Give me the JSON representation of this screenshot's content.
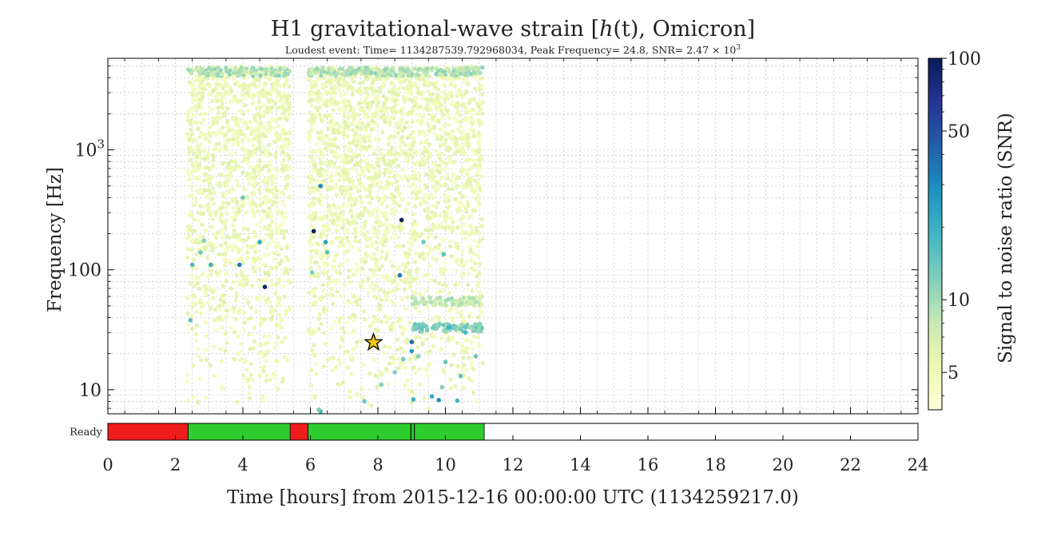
{
  "chart_data": {
    "type": "scatter",
    "title": "H1 gravitational-wave strain [h(t), Omicron]",
    "title_parts": {
      "prefix": "H1 gravitational-wave strain [",
      "var": "h",
      "arg": "(t)",
      "suffix": ", Omicron]"
    },
    "subtitle": "Loudest event: Time= 1134287539.792968034, Peak Frequency= 24.8, SNR= 2.47 × 10",
    "subtitle_exp": "3",
    "xlabel": "Time [hours] from 2015-12-16 00:00:00 UTC (1134259217.0)",
    "ylabel": "Frequency [Hz]",
    "xlim": [
      0,
      24
    ],
    "ylim": [
      6.3,
      5800
    ],
    "yscale": "log",
    "grid": true,
    "x_ticks": [
      0,
      2,
      4,
      6,
      8,
      10,
      12,
      14,
      16,
      18,
      20,
      22,
      24
    ],
    "y_ticks": [
      {
        "value": 10,
        "label": "10"
      },
      {
        "value": 100,
        "label": "100"
      },
      {
        "value": 1000,
        "label": "10",
        "exp": "3"
      }
    ],
    "colorbar": {
      "label": "Signal to noise ratio (SNR)",
      "scale": "log",
      "range": [
        3.5,
        100
      ],
      "ticks": [
        5,
        10,
        50,
        100
      ],
      "colormap": [
        "#ffffd9",
        "#edf8b1",
        "#c7e9b4",
        "#7fcdbb",
        "#41b6c4",
        "#1d91c0",
        "#225ea8",
        "#253494",
        "#081d58"
      ]
    },
    "loudest_event": {
      "x": 7.87,
      "y": 24.8,
      "snr": 2470,
      "marker": "star",
      "color": "#f5c518"
    },
    "trigger_clusters": [
      {
        "x_range": [
          2.35,
          5.4
        ],
        "y_range": [
          6.5,
          5000
        ],
        "snr": 4.5,
        "density": "high"
      },
      {
        "x_range": [
          5.95,
          11.1
        ],
        "y_range": [
          6.5,
          5000
        ],
        "snr": 4.5,
        "density": "high"
      }
    ],
    "bands": [
      {
        "x_range": [
          2.35,
          5.4
        ],
        "y": 4500,
        "snr": 9
      },
      {
        "x_range": [
          5.95,
          11.1
        ],
        "y": 4500,
        "snr": 9
      },
      {
        "x_range": [
          9.0,
          11.1
        ],
        "y": 55,
        "snr": 8
      },
      {
        "x_range": [
          9.0,
          11.1
        ],
        "y": 33,
        "snr": 12
      }
    ],
    "high_snr_points": [
      {
        "x": 2.5,
        "y": 110,
        "snr": 18
      },
      {
        "x": 2.75,
        "y": 140,
        "snr": 14
      },
      {
        "x": 2.85,
        "y": 175,
        "snr": 12
      },
      {
        "x": 3.05,
        "y": 110,
        "snr": 20
      },
      {
        "x": 3.9,
        "y": 110,
        "snr": 35
      },
      {
        "x": 4.0,
        "y": 400,
        "snr": 14
      },
      {
        "x": 4.5,
        "y": 170,
        "snr": 22
      },
      {
        "x": 4.65,
        "y": 72,
        "snr": 90
      },
      {
        "x": 2.45,
        "y": 38,
        "snr": 16
      },
      {
        "x": 6.1,
        "y": 210,
        "snr": 95
      },
      {
        "x": 6.3,
        "y": 500,
        "snr": 30
      },
      {
        "x": 6.45,
        "y": 170,
        "snr": 25
      },
      {
        "x": 6.5,
        "y": 140,
        "snr": 16
      },
      {
        "x": 6.05,
        "y": 95,
        "snr": 12
      },
      {
        "x": 8.7,
        "y": 260,
        "snr": 95
      },
      {
        "x": 8.65,
        "y": 90,
        "snr": 35
      },
      {
        "x": 9.35,
        "y": 170,
        "snr": 14
      },
      {
        "x": 9.95,
        "y": 135,
        "snr": 16
      },
      {
        "x": 9.0,
        "y": 25,
        "snr": 40
      },
      {
        "x": 9.0,
        "y": 21,
        "snr": 25
      },
      {
        "x": 9.8,
        "y": 8.2,
        "snr": 30
      },
      {
        "x": 9.05,
        "y": 8.3,
        "snr": 20
      },
      {
        "x": 9.6,
        "y": 8.8,
        "snr": 22
      },
      {
        "x": 10.35,
        "y": 8.1,
        "snr": 18
      },
      {
        "x": 10.45,
        "y": 13,
        "snr": 15
      },
      {
        "x": 10.9,
        "y": 19,
        "snr": 14
      },
      {
        "x": 8.75,
        "y": 18,
        "snr": 13
      },
      {
        "x": 8.1,
        "y": 11,
        "snr": 12
      },
      {
        "x": 7.6,
        "y": 8.0,
        "snr": 14
      },
      {
        "x": 6.3,
        "y": 6.6,
        "snr": 18
      },
      {
        "x": 6.25,
        "y": 6.8,
        "snr": 13
      },
      {
        "x": 10.1,
        "y": 33,
        "snr": 20
      },
      {
        "x": 10.6,
        "y": 30,
        "snr": 18
      },
      {
        "x": 9.3,
        "y": 32,
        "snr": 15
      },
      {
        "x": 9.2,
        "y": 19,
        "snr": 12
      },
      {
        "x": 10.0,
        "y": 17,
        "snr": 14
      },
      {
        "x": 9.9,
        "y": 10.5,
        "snr": 12
      },
      {
        "x": 8.5,
        "y": 14,
        "snr": 12
      }
    ],
    "segments": {
      "label": "Ready",
      "off_color": "#ee1c1c",
      "on_color": "#2ecc2e",
      "off": [
        [
          0,
          2.38
        ],
        [
          5.4,
          5.93
        ]
      ],
      "on": [
        [
          2.38,
          5.4
        ],
        [
          5.93,
          11.15
        ]
      ],
      "gaps": [
        8.98,
        9.08
      ]
    }
  }
}
